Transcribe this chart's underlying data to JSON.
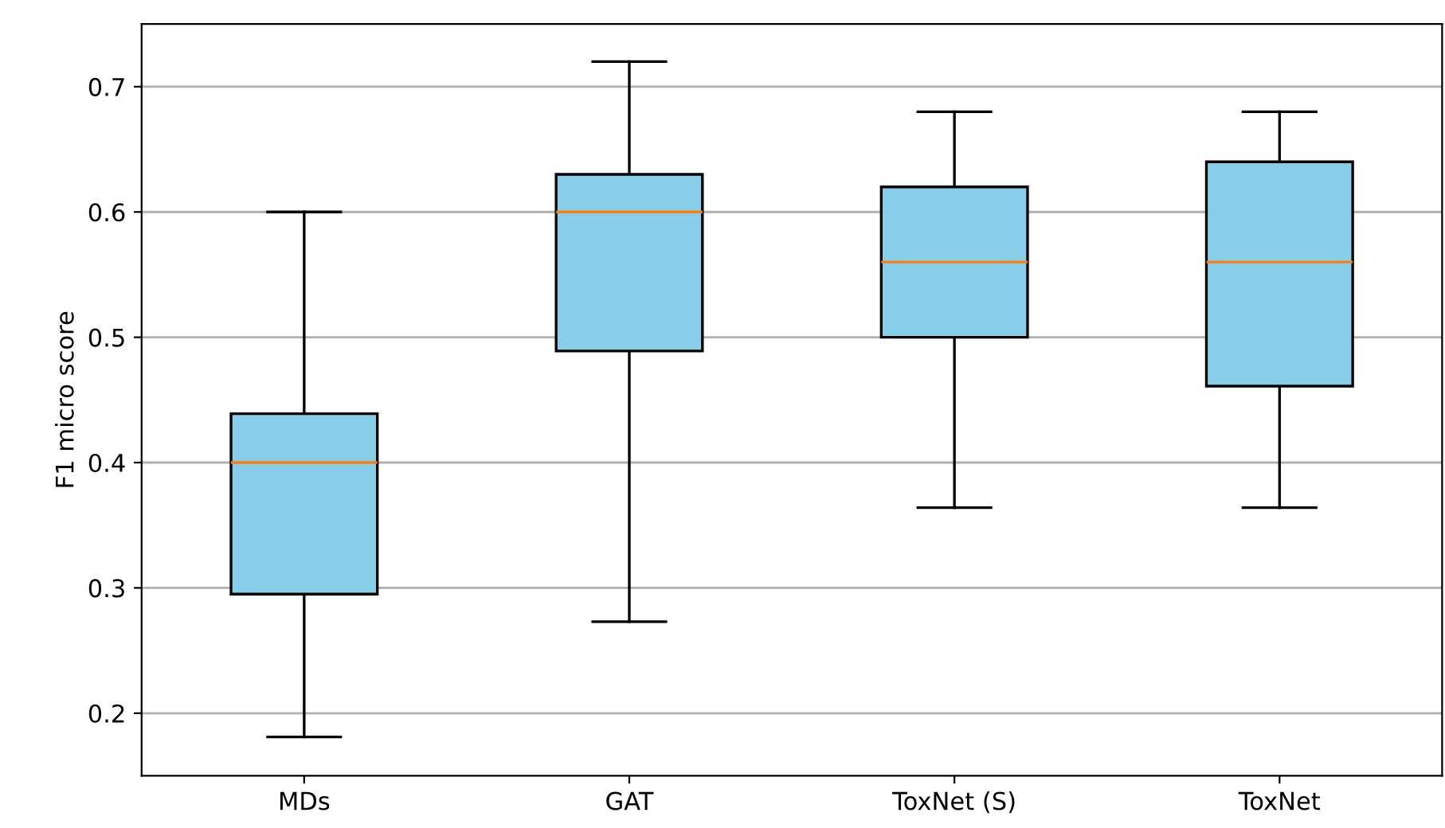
{
  "chart_data": {
    "type": "box",
    "ylabel": "F1 micro score",
    "categories": [
      "MDs",
      "GAT",
      "ToxNet (S)",
      "ToxNet"
    ],
    "series": [
      {
        "color": "#87ceeb",
        "boxes": [
          {
            "low": 0.181,
            "q1": 0.295,
            "median": 0.4,
            "q3": 0.439,
            "high": 0.6
          },
          {
            "low": 0.273,
            "q1": 0.489,
            "median": 0.6,
            "q3": 0.63,
            "high": 0.72
          },
          {
            "low": 0.364,
            "q1": 0.5,
            "median": 0.56,
            "q3": 0.62,
            "high": 0.68
          },
          {
            "low": 0.364,
            "q1": 0.461,
            "median": 0.56,
            "q3": 0.64,
            "high": 0.68
          }
        ]
      }
    ],
    "ylim": [
      0.15,
      0.75
    ],
    "yticks": [
      0.2,
      0.3,
      0.4,
      0.5,
      0.6,
      0.7
    ],
    "grid": "y"
  }
}
